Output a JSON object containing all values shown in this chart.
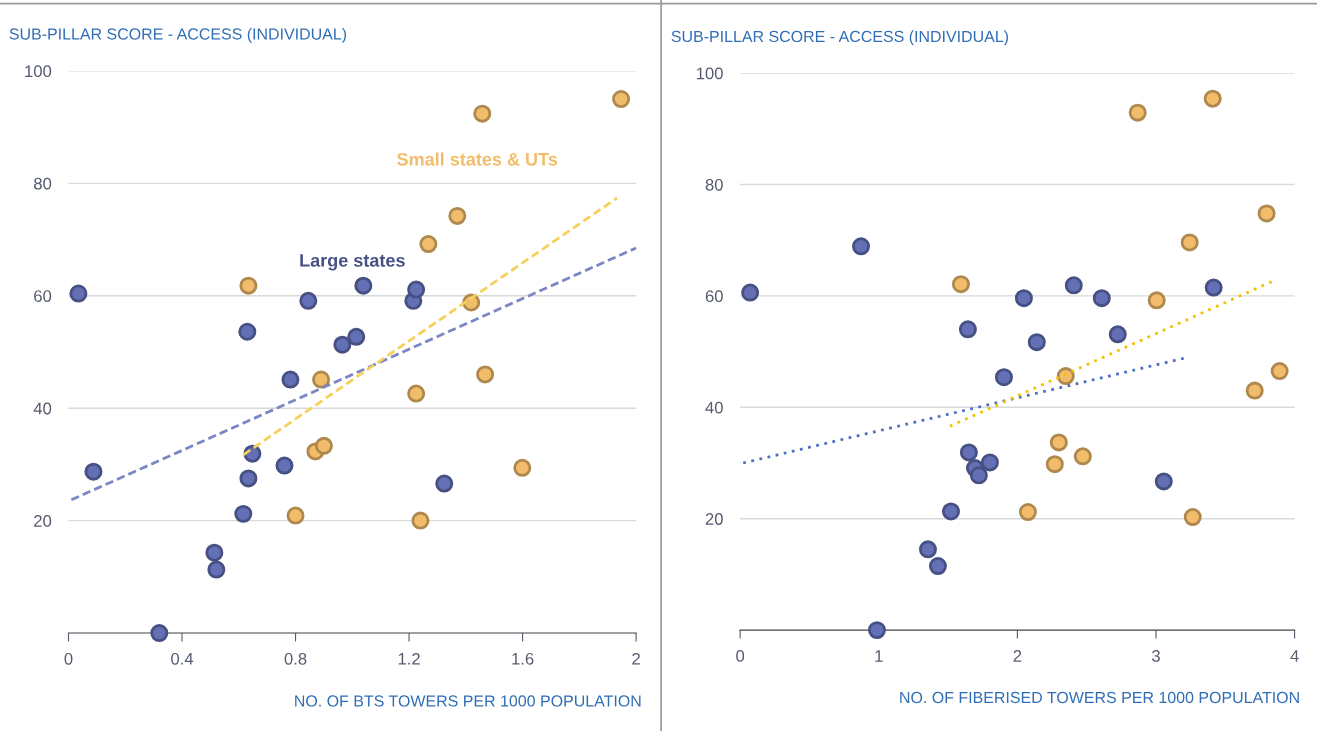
{
  "chart_data": [
    {
      "type": "scatter",
      "ylabel": "SUB-PILLAR SCORE - ACCESS (INDIVIDUAL)",
      "xlabel": "NO. OF BTS TOWERS PER 1000 POPULATION",
      "xlim": [
        0,
        2
      ],
      "xticks": [
        0,
        0.4,
        0.8,
        1.2,
        1.6,
        2
      ],
      "ylim": [
        0,
        100
      ],
      "yticks": [
        20,
        40,
        60,
        80,
        100
      ],
      "grid": "y",
      "legend": false,
      "marker": "circle",
      "series": [
        {
          "name": "Large states",
          "color": "#6370b5",
          "x": [
            0.035,
            0.088,
            0.32,
            0.514,
            0.521,
            0.616,
            0.63,
            0.634,
            0.648,
            0.761,
            0.782,
            0.845,
            0.965,
            1.014,
            1.039,
            1.215,
            1.225,
            1.324
          ],
          "values": [
            60.4,
            28.7,
            0,
            14.3,
            11.3,
            21.2,
            53.6,
            27.5,
            31.9,
            29.8,
            45.1,
            59.1,
            51.3,
            52.7,
            61.8,
            59.1,
            61.1,
            26.6
          ]
        },
        {
          "name": "Small states & UTs",
          "color": "#f2bd6b",
          "x": [
            0.634,
            0.8,
            0.87,
            0.89,
            0.9,
            1.225,
            1.24,
            1.268,
            1.37,
            1.419,
            1.458,
            1.468,
            1.599,
            1.947
          ],
          "values": [
            61.8,
            20.9,
            32.3,
            45.1,
            33.3,
            42.6,
            20,
            69.2,
            74.2,
            58.8,
            92.4,
            46,
            29.4,
            95
          ]
        },
        {
          "type": "line",
          "marker": "none",
          "color": "#7b86c4",
          "line_style": "dashed",
          "x": [
            0.01,
            2
          ],
          "values": [
            23.7,
            68.5
          ]
        },
        {
          "type": "line",
          "marker": "none",
          "color": "#f5d15a",
          "line_style": "dashed",
          "x": [
            0.616,
            1.933
          ],
          "values": [
            31.7,
            77.4
          ]
        }
      ]
    },
    {
      "type": "scatter",
      "ylabel": "SUB-PILLAR SCORE - ACCESS (INDIVIDUAL)",
      "xlabel": "NO. OF FIBERISED TOWERS PER 1000 POPULATION",
      "xlim": [
        0,
        4
      ],
      "xticks": [
        0,
        1,
        2,
        3,
        4
      ],
      "ylim": [
        0,
        100
      ],
      "yticks": [
        20,
        40,
        60,
        80,
        100
      ],
      "grid": "y",
      "legend": false,
      "marker": "circle",
      "series": [
        {
          "color": "#6370b5",
          "x": [
            0.072,
            0.872,
            0.987,
            1.355,
            1.427,
            1.521,
            1.643,
            1.65,
            1.694,
            1.722,
            1.802,
            1.903,
            2.047,
            2.14,
            2.407,
            2.609,
            2.724,
            3.056,
            3.416
          ],
          "values": [
            60.6,
            68.9,
            0,
            14.5,
            11.5,
            21.3,
            54,
            31.9,
            29.1,
            27.8,
            30.1,
            45.4,
            59.6,
            51.7,
            61.9,
            59.6,
            53.1,
            26.7,
            61.5
          ]
        },
        {
          "color": "#f2bd6b",
          "x": [
            1.593,
            2.076,
            2.27,
            2.299,
            2.349,
            2.472,
            2.868,
            3.005,
            3.243,
            3.265,
            3.409,
            3.712,
            3.798,
            3.892
          ],
          "values": [
            62.1,
            21.2,
            29.8,
            33.7,
            45.6,
            31.2,
            92.9,
            59.2,
            69.6,
            20.3,
            95.4,
            43,
            74.8,
            46.5
          ]
        },
        {
          "type": "line",
          "marker": "none",
          "color": "#4f6fc5",
          "line_style": "dotted",
          "x": [
            0.022,
            3.2
          ],
          "values": [
            30,
            48.8
          ]
        },
        {
          "type": "line",
          "marker": "none",
          "color": "#f2c200",
          "line_style": "dotted",
          "x": [
            1.513,
            3.856
          ],
          "values": [
            36.6,
            62.8
          ]
        }
      ]
    }
  ]
}
